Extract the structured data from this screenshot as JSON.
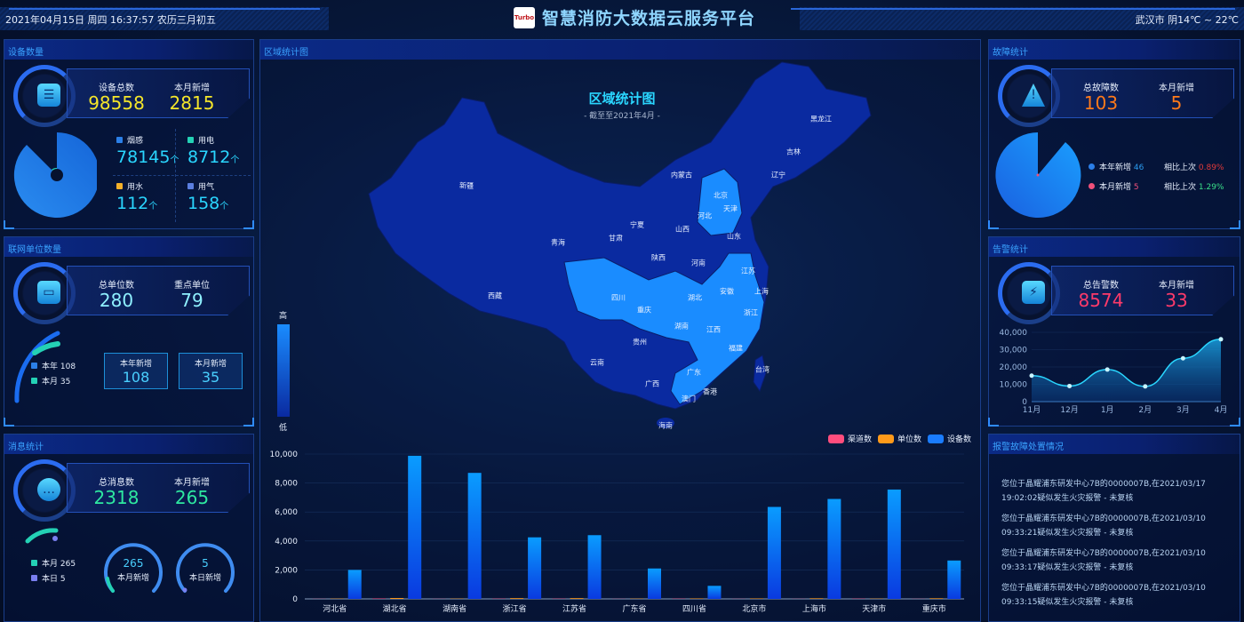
{
  "header": {
    "datetime": "2021年04月15日 周四 16:37:57 农历三月初五",
    "title": "智慧消防大数据云服务平台",
    "logo_text": "Turbo",
    "weather": "武汉市 阴14℃ ~ 22℃"
  },
  "devices": {
    "title": "设备数量",
    "total_label": "设备总数",
    "total": "98558",
    "month_label": "本月新增",
    "month": "2815",
    "items": [
      {
        "label": "烟感",
        "value": "78145",
        "unit": "个",
        "color": "#2b7fe8"
      },
      {
        "label": "用电",
        "value": "8712",
        "unit": "个",
        "color": "#24d1b5"
      },
      {
        "label": "用水",
        "value": "112",
        "unit": "个",
        "color": "#f4b12a"
      },
      {
        "label": "用气",
        "value": "158",
        "unit": "个",
        "color": "#5b7fe0"
      }
    ]
  },
  "units": {
    "title": "联网单位数量",
    "total_label": "总单位数",
    "total": "280",
    "key_label": "重点单位",
    "key": "79",
    "legend": [
      {
        "label": "本年 108",
        "color": "#2b7fe8"
      },
      {
        "label": "本月 35",
        "color": "#24d1b5"
      }
    ],
    "year_label": "本年新增",
    "year": "108",
    "month_label": "本月新增",
    "month": "35"
  },
  "messages": {
    "title": "消息统计",
    "total_label": "总消息数",
    "total": "2318",
    "month_label": "本月新增",
    "month": "265",
    "legend": [
      {
        "label": "本月 265",
        "color": "#24d1b5"
      },
      {
        "label": "本日 5",
        "color": "#7a7ff0"
      }
    ],
    "gauges": [
      {
        "value": "265",
        "label": "本月新增"
      },
      {
        "value": "5",
        "label": "本日新增"
      }
    ]
  },
  "map": {
    "panel_title": "区域统计图",
    "title": "区域统计图",
    "subtitle": "- 截至至2021年4月 -",
    "legend_high": "高",
    "legend_low": "低",
    "provinces": [
      "黑龙江",
      "吉林",
      "辽宁",
      "内蒙古",
      "北京",
      "天津",
      "河北",
      "新疆",
      "宁夏",
      "山西",
      "山东",
      "甘肃",
      "青海",
      "陕西",
      "河南",
      "江苏",
      "上海",
      "安徽",
      "西藏",
      "四川",
      "湖北",
      "重庆",
      "浙江",
      "湖南",
      "江西",
      "贵州",
      "福建",
      "云南",
      "广东",
      "台湾",
      "广西",
      "香港",
      "澳门",
      "海南"
    ],
    "colors": {
      "low": "#0a2aa0",
      "high": "#1a8cff"
    }
  },
  "chart_data": [
    {
      "type": "bar",
      "categories": [
        "河北省",
        "湖北省",
        "湖南省",
        "浙江省",
        "江苏省",
        "广东省",
        "四川省",
        "北京市",
        "上海市",
        "天津市",
        "重庆市"
      ],
      "series": [
        {
          "name": "渠道数",
          "color": "#ff4d7d",
          "values": [
            10,
            30,
            10,
            20,
            20,
            10,
            20,
            10,
            10,
            20,
            10
          ]
        },
        {
          "name": "单位数",
          "color": "#ff9a1a",
          "values": [
            20,
            60,
            20,
            50,
            50,
            20,
            30,
            30,
            40,
            20,
            40
          ]
        },
        {
          "name": "设备数",
          "color": "#1a7cff",
          "values": [
            2000,
            9880,
            8700,
            4250,
            4400,
            2100,
            900,
            6350,
            6900,
            7550,
            2650
          ]
        }
      ],
      "ylim": [
        0,
        10000
      ],
      "yticks": [
        "0",
        "2,000",
        "4,000",
        "6,000",
        "8,000",
        "10,000"
      ],
      "legend": "top-right",
      "grid": true
    },
    {
      "type": "area",
      "categories": [
        "11月",
        "12月",
        "1月",
        "2月",
        "3月",
        "4月"
      ],
      "values": [
        15000,
        9000,
        18500,
        8800,
        25000,
        36000
      ],
      "ylim": [
        0,
        40000
      ],
      "yticks": [
        "0",
        "10,000",
        "20,000",
        "30,000",
        "40,000"
      ],
      "grid": true
    }
  ],
  "faults": {
    "title": "故障统计",
    "total_label": "总故障数",
    "total": "103",
    "month_label": "本月新增",
    "month": "5",
    "rows": [
      {
        "label": "本年新增",
        "value": "46",
        "dot": "#2b7fe8",
        "vcolor": "#2b9cf0",
        "cmp_label": "相比上次",
        "cmp": "0.89%",
        "cmp_color": "#e03a3a"
      },
      {
        "label": "本月新增",
        "value": "5",
        "dot": "#f0507a",
        "vcolor": "#f0507a",
        "cmp_label": "相比上次",
        "cmp": "1.29%",
        "cmp_color": "#3ae08a"
      }
    ]
  },
  "alarms": {
    "title": "告警统计",
    "total_label": "总告警数",
    "total": "8574",
    "month_label": "本月新增",
    "month": "33"
  },
  "handling": {
    "title": "报警故障处置情况",
    "items": [
      "您位于晶耀浦东研发中心7B的0000007B,在2021/03/17 19:02:02疑似发生火灾报警 - 未复核",
      "您位于晶耀浦东研发中心7B的0000007B,在2021/03/10 09:33:21疑似发生火灾报警 - 未复核",
      "您位于晶耀浦东研发中心7B的0000007B,在2021/03/10 09:33:17疑似发生火灾报警 - 未复核",
      "您位于晶耀浦东研发中心7B的0000007B,在2021/03/10 09:33:15疑似发生火灾报警 - 未复核"
    ]
  }
}
